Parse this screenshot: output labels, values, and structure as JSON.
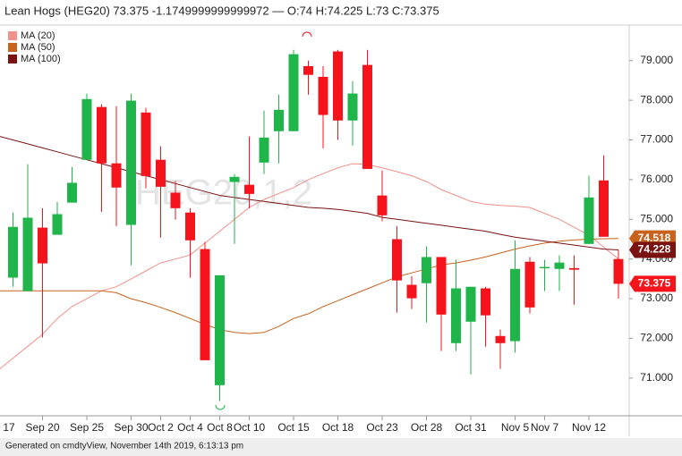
{
  "chart_data": {
    "type": "candlestick",
    "title": "Lean Hogs (HEG20) 73.375 -1.1749999999999972 — O:74 H:74.225 L:73 C:73.375",
    "watermark": "HEG20,1,2",
    "footer": "Generated on cmdtyView, November 14th 2019, 6:13:13 pm",
    "categories": [
      "17",
      null,
      null,
      "Sep 20",
      null,
      null,
      "Sep 25",
      null,
      null,
      "Sep 30",
      null,
      "Oct 2",
      null,
      "Oct 4",
      null,
      "Oct 8",
      null,
      "Oct 10",
      null,
      null,
      "Oct 15",
      null,
      null,
      "Oct 18",
      null,
      null,
      "Oct 23",
      null,
      null,
      "Oct 28",
      null,
      null,
      "Oct 31",
      null,
      null,
      "Nov 5",
      null,
      "Nov 7",
      null,
      null,
      "Nov 12",
      null,
      null
    ],
    "open": [
      null,
      73.53,
      73.19,
      74.79,
      74.61,
      75.42,
      76.5,
      77.83,
      76.41,
      74.86,
      77.69,
      76.5,
      75.67,
      75.17,
      74.25,
      70.82,
      75.94,
      75.87,
      76.43,
      77.22,
      77.22,
      78.86,
      78.59,
      79.23,
      77.49,
      78.89,
      75.6,
      74.5,
      73.35,
      73.39,
      74.05,
      71.88,
      72.42,
      73.26,
      72.06,
      71.93,
      73.93,
      73.77,
      73.75,
      73.77,
      74.38,
      75.98,
      74
    ],
    "high": [
      null,
      75.17,
      76.39,
      75.28,
      75.44,
      76.32,
      78.17,
      77.9,
      77.85,
      78.17,
      77.81,
      76.84,
      75.96,
      75.28,
      74.43,
      73.59,
      76.14,
      77.09,
      77.74,
      78.14,
      79.27,
      79.0,
      78.86,
      79.27,
      78.48,
      79.27,
      76.23,
      74.83,
      73.57,
      74.32,
      74.05,
      73.98,
      73.3,
      73.3,
      72.22,
      74.47,
      74.05,
      73.98,
      74.09,
      74.09,
      76.1,
      76.61,
      74.225
    ],
    "low": [
      null,
      73.3,
      73.19,
      72.02,
      74.61,
      75.42,
      76.5,
      75.19,
      74.83,
      73.84,
      75.78,
      74.54,
      74.99,
      73.53,
      71.45,
      70.42,
      74.38,
      75.28,
      76.14,
      76.41,
      77.22,
      78.14,
      76.79,
      77.0,
      76.86,
      76.27,
      74.95,
      72.65,
      72.74,
      72.4,
      71.68,
      71.68,
      71.09,
      71.79,
      71.23,
      71.64,
      72.63,
      73.19,
      73.19,
      72.85,
      74.38,
      74.56,
      73
    ],
    "close": [
      null,
      74.81,
      75.04,
      73.89,
      75.13,
      75.92,
      78.03,
      76.41,
      75.8,
      77.99,
      76.09,
      75.82,
      75.28,
      74.47,
      71.45,
      73.59,
      76.07,
      75.64,
      77.06,
      77.76,
      79.16,
      78.64,
      77.63,
      77.49,
      78.17,
      76.27,
      75.1,
      73.46,
      73.01,
      74.05,
      72.6,
      73.26,
      73.3,
      72.58,
      71.88,
      73.75,
      72.78,
      73.8,
      73.91,
      73.73,
      75.55,
      74.56,
      73.375
    ],
    "up_color": "#1fb54a",
    "down_color": "#f5141b",
    "close_label": true,
    "series": [
      {
        "name": "MA (20)",
        "color": "#f2908a",
        "value_label": false,
        "values": [
          71.2,
          71.5,
          71.8,
          72.1,
          72.5,
          72.8,
          73.0,
          73.2,
          73.3,
          73.5,
          73.7,
          73.9,
          74.0,
          74.1,
          74.4,
          74.7,
          75.0,
          75.3,
          75.5,
          75.65,
          75.8,
          76.0,
          76.15,
          76.3,
          76.4,
          76.38,
          76.3,
          76.2,
          76.1,
          75.95,
          75.75,
          75.6,
          75.45,
          75.38,
          75.35,
          75.33,
          75.3,
          75.15,
          75.0,
          74.8,
          74.6,
          74.3,
          74.0
        ]
      },
      {
        "name": "MA (50)",
        "color": "#c8621c",
        "value_label": true,
        "values": [
          73.2,
          73.2,
          73.2,
          73.2,
          73.2,
          73.2,
          73.2,
          73.2,
          73.15,
          73.0,
          72.9,
          72.78,
          72.65,
          72.5,
          72.35,
          72.22,
          72.15,
          72.12,
          72.15,
          72.3,
          72.5,
          72.62,
          72.8,
          72.95,
          73.1,
          73.25,
          73.4,
          73.55,
          73.65,
          73.75,
          73.85,
          73.9,
          73.97,
          74.05,
          74.15,
          74.25,
          74.33,
          74.4,
          74.45,
          74.48,
          74.5,
          74.51,
          74.518
        ]
      },
      {
        "name": "MA (100)",
        "color": "#7a1212",
        "value_label": true,
        "values": [
          77.1,
          77.0,
          76.9,
          76.8,
          76.7,
          76.6,
          76.5,
          76.4,
          76.3,
          76.2,
          76.1,
          76.0,
          75.9,
          75.8,
          75.7,
          75.6,
          75.55,
          75.5,
          75.45,
          75.4,
          75.35,
          75.3,
          75.28,
          75.25,
          75.2,
          75.15,
          75.05,
          75.0,
          74.95,
          74.9,
          74.85,
          74.8,
          74.75,
          74.7,
          74.62,
          74.55,
          74.5,
          74.45,
          74.4,
          74.35,
          74.3,
          74.25,
          74.228
        ]
      }
    ],
    "ylim": [
      70.05,
      79.85
    ],
    "yticks": [
      {
        "value": 71,
        "label": "71.000"
      },
      {
        "value": 72,
        "label": "72.000"
      },
      {
        "value": 73,
        "label": "73.000"
      },
      {
        "value": 74,
        "label": "74.000"
      },
      {
        "value": 75,
        "label": "75.000"
      },
      {
        "value": 76,
        "label": "76.000"
      },
      {
        "value": 77,
        "label": "77.000"
      },
      {
        "value": 78,
        "label": "78.000"
      },
      {
        "value": 79,
        "label": "79.000"
      }
    ],
    "grid": false
  }
}
